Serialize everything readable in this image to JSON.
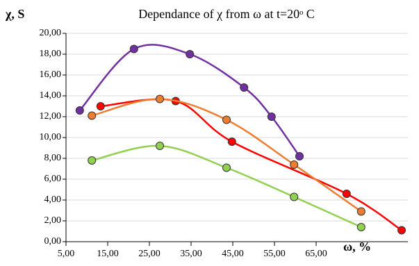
{
  "chart_data": {
    "type": "scatter",
    "title": "Dependance of χ from ω at t=20ᵒ C",
    "y_label": "χ, S",
    "x_label": "ω, %",
    "grid": true,
    "smooth": true,
    "xlim": [
      5,
      87
    ],
    "ylim": [
      0,
      20
    ],
    "xticks": [
      {
        "value": 5,
        "label": "5,00"
      },
      {
        "value": 15,
        "label": "15,00"
      },
      {
        "value": 25,
        "label": "25,00"
      },
      {
        "value": 35,
        "label": "35,00"
      },
      {
        "value": 45,
        "label": "45,00"
      },
      {
        "value": 55,
        "label": "55,00"
      },
      {
        "value": 65,
        "label": "65,00"
      }
    ],
    "yticks": [
      {
        "value": 0,
        "label": "0,00"
      },
      {
        "value": 2,
        "label": "2,00"
      },
      {
        "value": 4,
        "label": "4,00"
      },
      {
        "value": 6,
        "label": "6,00"
      },
      {
        "value": 8,
        "label": "8,00"
      },
      {
        "value": 10,
        "label": "10,00"
      },
      {
        "value": 12,
        "label": "12,00"
      },
      {
        "value": 14,
        "label": "14,00"
      },
      {
        "value": 16,
        "label": "16,00"
      },
      {
        "value": 18,
        "label": "18,00"
      },
      {
        "value": 20,
        "label": "20,00"
      }
    ],
    "series": [
      {
        "color": "#7030a0",
        "x": [
          8.3,
          21.3,
          34.7,
          47.7,
          54.3,
          61
        ],
        "values": [
          12.6,
          18.5,
          18.0,
          14.8,
          12.0,
          8.2
        ]
      },
      {
        "color": "#ff0000",
        "x": [
          13.3,
          31.3,
          44.8,
          72.3,
          85.5
        ],
        "values": [
          13.0,
          13.5,
          9.6,
          4.6,
          1.1
        ]
      },
      {
        "color": "#ed7d31",
        "x": [
          11.2,
          27.5,
          43.5,
          59.7,
          75.8
        ],
        "values": [
          12.1,
          13.7,
          11.7,
          7.4,
          2.9
        ]
      },
      {
        "color": "#92d050",
        "x": [
          11.2,
          27.5,
          43.5,
          59.7,
          75.8
        ],
        "values": [
          7.8,
          9.2,
          7.1,
          4.3,
          1.4
        ]
      }
    ]
  }
}
